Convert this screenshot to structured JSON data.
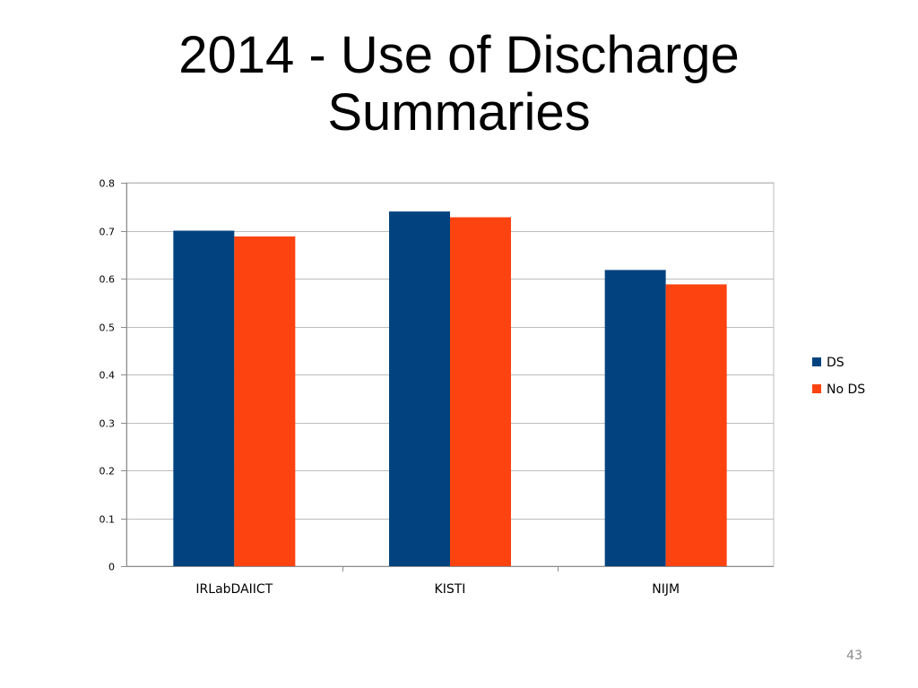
{
  "slide": {
    "title_line1": "2014 - Use of Discharge",
    "title_line2": "Summaries",
    "page_number": "43"
  },
  "colors": {
    "ds": "#02437f",
    "no_ds": "#fc4310",
    "grid": "#bdbdbd",
    "axis": "#8c8c8c"
  },
  "chart_data": {
    "type": "bar",
    "title": "2014 - Use of Discharge Summaries",
    "xlabel": "",
    "ylabel": "",
    "categories": [
      "IRLabDAIICT",
      "KISTI",
      "NIJM"
    ],
    "series": [
      {
        "name": "DS",
        "values": [
          0.7,
          0.74,
          0.618
        ]
      },
      {
        "name": "No DS",
        "values": [
          0.688,
          0.728,
          0.588
        ]
      }
    ],
    "ylim": [
      0,
      0.8
    ],
    "yticks": [
      0,
      0.1,
      0.2,
      0.3,
      0.4,
      0.5,
      0.6,
      0.7,
      0.8
    ],
    "ytick_labels": [
      "0",
      "0.1",
      "0.2",
      "0.3",
      "0.4",
      "0.5",
      "0.6",
      "0.7",
      "0.8"
    ],
    "grid": true,
    "legend_position": "right"
  }
}
